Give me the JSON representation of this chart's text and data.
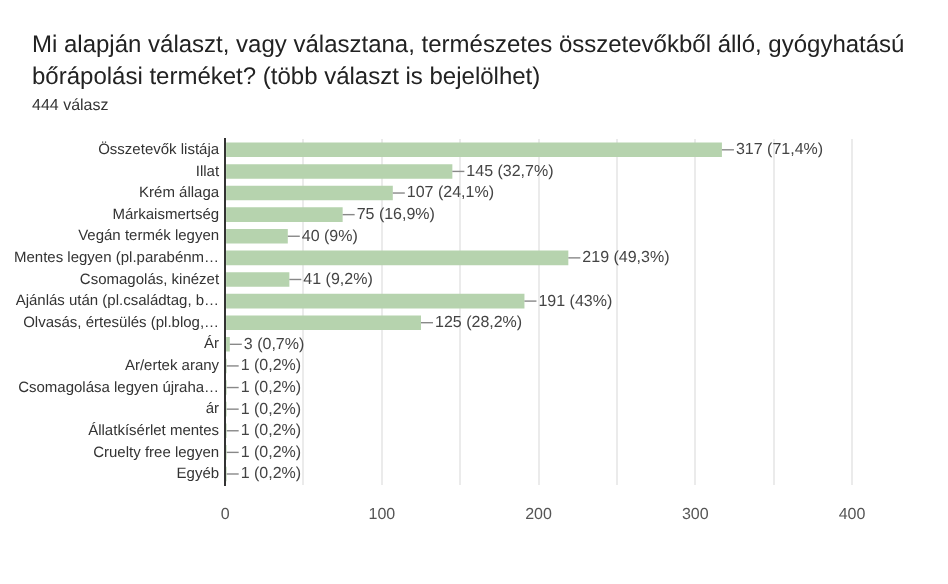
{
  "chart_data": {
    "type": "bar",
    "orientation": "horizontal",
    "title": "Mi alapján választ, vagy választana, természetes összetevőkből álló, gyógyhatású bőrápolási terméket? (több választ is bejelölhet)",
    "subtitle": "444 válasz",
    "categories": [
      "Összetevők listája",
      "Illat",
      "Krém állaga",
      "Márkaismertség",
      "Vegán termék legyen",
      "Mentes legyen (pl.parabénm…",
      "Csomagolás, kinézet",
      "Ajánlás után (pl.családtag, b…",
      "Olvasás, értesülés (pl.blog,…",
      "Ár",
      "Ar/ertek arany",
      "Csomagolása legyen újraha…",
      "ár",
      "Állatkísérlet mentes",
      "Cruelty free legyen",
      "Egyéb"
    ],
    "values": [
      317,
      145,
      107,
      75,
      40,
      219,
      41,
      191,
      125,
      3,
      1,
      1,
      1,
      1,
      1,
      1
    ],
    "value_labels": [
      "317 (71,4%)",
      "145 (32,7%)",
      "107 (24,1%)",
      "75 (16,9%)",
      "40 (9%)",
      "219 (49,3%)",
      "41 (9,2%)",
      "191 (43%)",
      "125 (28,2%)",
      "3 (0,7%)",
      "1 (0,2%)",
      "1 (0,2%)",
      "1 (0,2%)",
      "1 (0,2%)",
      "1 (0,2%)",
      "1 (0,2%)"
    ],
    "color": "#b6d3ae",
    "xlim": [
      0,
      400
    ],
    "xticks": [
      0,
      {
        "value": 50,
        "label": null
      },
      100,
      {
        "value": 150,
        "label": null
      },
      200,
      {
        "value": 250,
        "label": null
      },
      300,
      {
        "value": 350,
        "label": null
      },
      400
    ],
    "grid": "x",
    "legend": false
  }
}
